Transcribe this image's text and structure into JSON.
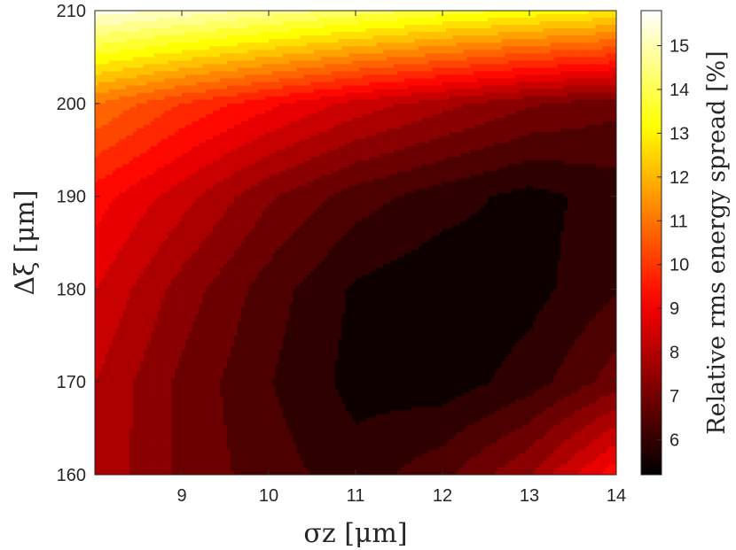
{
  "chart_data": {
    "type": "heatmap",
    "subtype": "filled-contour",
    "xlabel": "σz [μm]",
    "ylabel": "Δξ [μm]",
    "colorbar_label": "Relative rms energy spread [%]",
    "xlim": [
      8,
      14
    ],
    "ylim": [
      160,
      210
    ],
    "x_ticks": [
      "9",
      "10",
      "11",
      "12",
      "13",
      "14"
    ],
    "y_ticks": [
      "160",
      "170",
      "180",
      "190",
      "200",
      "210"
    ],
    "x_tick_values": [
      9,
      10,
      11,
      12,
      13,
      14
    ],
    "y_tick_values": [
      160,
      170,
      180,
      190,
      200,
      210
    ],
    "colorbar_ticks": [
      "6",
      "7",
      "8",
      "9",
      "10",
      "11",
      "12",
      "13",
      "14",
      "15"
    ],
    "colorbar_tick_values": [
      6,
      7,
      8,
      9,
      10,
      11,
      12,
      13,
      14,
      15
    ],
    "clim": [
      5.2,
      15.8
    ],
    "colormap": "hot",
    "contour_levels": 22,
    "x_grid": [
      8,
      9,
      10,
      11,
      12,
      13,
      14
    ],
    "y_grid": [
      160,
      170,
      180,
      190,
      200,
      210
    ],
    "z": [
      [
        8.0,
        7.0,
        6.4,
        5.9,
        6.5,
        7.6,
        9.4
      ],
      [
        8.1,
        7.0,
        6.2,
        5.5,
        5.4,
        5.9,
        6.9
      ],
      [
        8.6,
        7.4,
        6.4,
        5.6,
        5.3,
        5.5,
        6.1
      ],
      [
        9.3,
        8.3,
        7.2,
        6.4,
        5.9,
        5.5,
        5.9
      ],
      [
        11.0,
        10.0,
        9.2,
        8.4,
        7.8,
        7.2,
        6.8
      ],
      [
        15.6,
        15.2,
        14.7,
        14.2,
        13.7,
        13.3,
        12.9
      ]
    ]
  }
}
